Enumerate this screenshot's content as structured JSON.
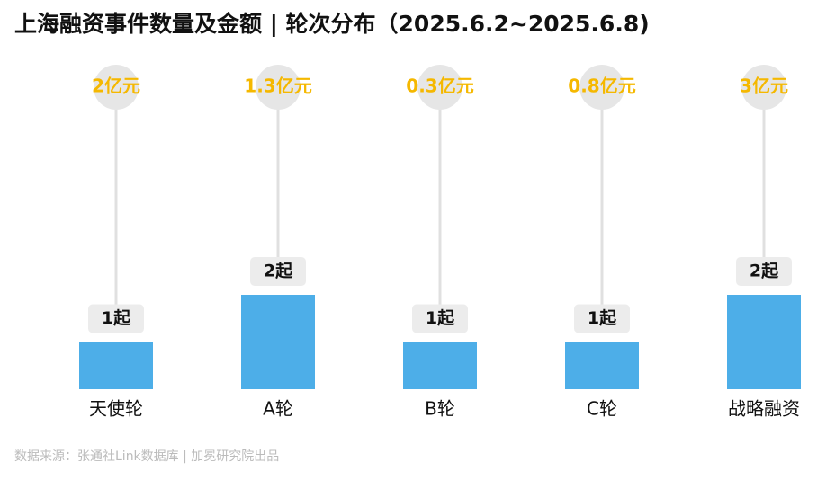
{
  "chart_data": {
    "type": "bar",
    "title": "上海融资事件数量及金额 | 轮次分布（2025.6.2~2025.6.8)",
    "categories": [
      "天使轮",
      "A轮",
      "B轮",
      "C轮",
      "战略融资"
    ],
    "values": [
      1,
      2,
      1,
      1,
      2
    ],
    "value_labels": [
      "1起",
      "2起",
      "1起",
      "1起",
      "2起"
    ],
    "color": "#4daee8",
    "amounts": {
      "values": [
        2,
        1.3,
        0.3,
        0.8,
        3
      ],
      "value_labels": [
        "2亿元",
        "1.3亿元",
        "0.3亿元",
        "0.8亿元",
        "3亿元"
      ],
      "color": "#f5b800"
    },
    "source": "数据来源：张通社Link数据库 | 加冕研究院出品"
  }
}
